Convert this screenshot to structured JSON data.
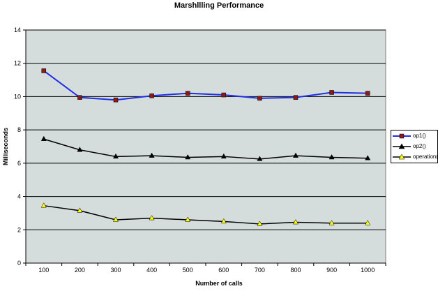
{
  "chart_data": {
    "type": "line",
    "title": "Marshllling Performance",
    "xlabel": "Number of calls",
    "ylabel": "Milliseconds",
    "categories": [
      "100",
      "200",
      "300",
      "400",
      "500",
      "600",
      "700",
      "800",
      "900",
      "1000"
    ],
    "ylim": [
      0,
      14
    ],
    "yticks": [
      "0",
      "2",
      "4",
      "6",
      "8",
      "10",
      "12",
      "14"
    ],
    "grid": true,
    "legend_position": "right",
    "plot_background": "#d4dcdc",
    "series": [
      {
        "name": "op1()",
        "color": "#1f2fe6",
        "marker": "square",
        "marker_fill": "#8b1a1a",
        "values": [
          11.55,
          9.95,
          9.8,
          10.05,
          10.2,
          10.1,
          9.9,
          9.95,
          10.25,
          10.2
        ]
      },
      {
        "name": "op2()",
        "color": "#000000",
        "marker": "triangle",
        "marker_fill": "#000000",
        "values": [
          7.45,
          6.8,
          6.4,
          6.45,
          6.35,
          6.4,
          6.25,
          6.45,
          6.35,
          6.3
        ]
      },
      {
        "name": "operation()",
        "color": "#000000",
        "marker": "triangle",
        "marker_fill": "#ffff00",
        "values": [
          3.45,
          3.15,
          2.6,
          2.7,
          2.6,
          2.5,
          2.35,
          2.45,
          2.4,
          2.4
        ]
      }
    ]
  }
}
